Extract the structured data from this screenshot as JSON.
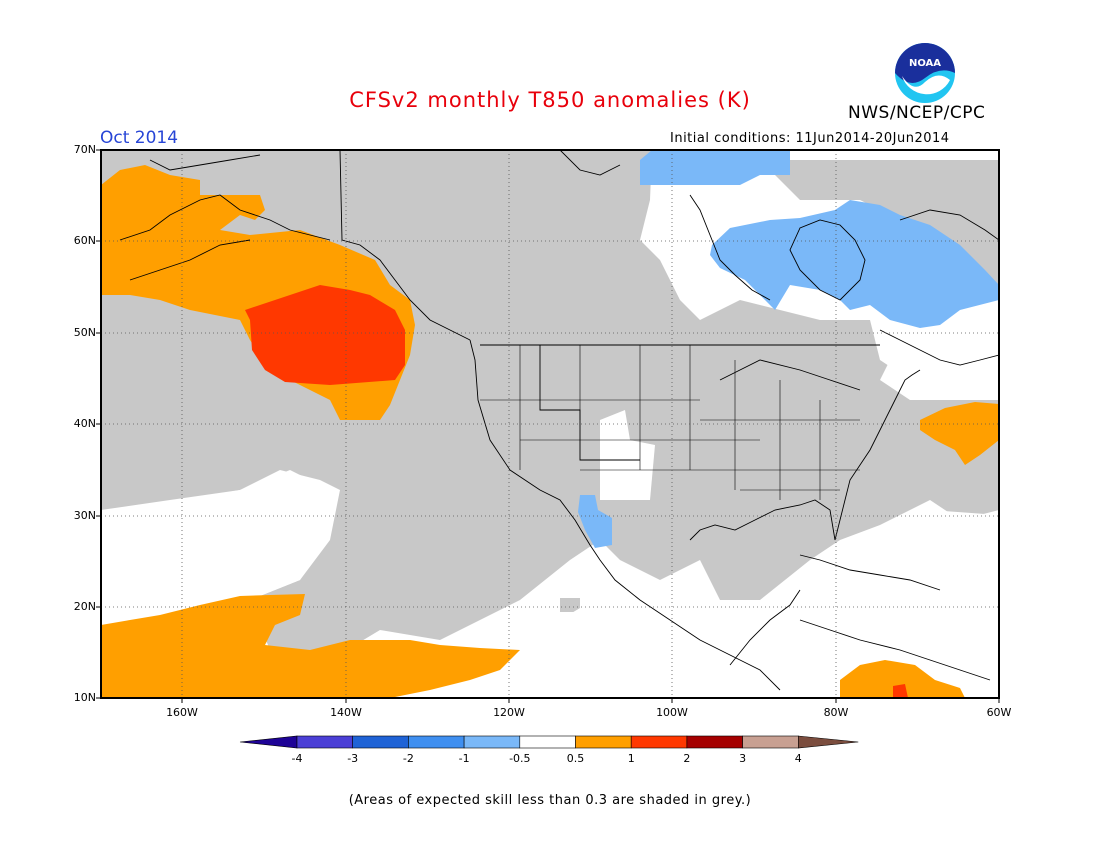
{
  "title": "CFSv2 monthly T850 anomalies (K)",
  "month": "Oct 2014",
  "agency": "NWS/NCEP/CPC",
  "logo_text": "NOAA",
  "initial_conditions": "Initial conditions: 11Jun2014-20Jun2014",
  "note": "(Areas of expected skill less than 0.3 are shaded in grey.)",
  "lat_labels": [
    "70N",
    "60N",
    "50N",
    "40N",
    "30N",
    "20N",
    "10N"
  ],
  "lon_labels": [
    "160W",
    "140W",
    "120W",
    "100W",
    "80W",
    "60W"
  ],
  "colorbar": {
    "labels": [
      "-4",
      "-3",
      "-2",
      "-1",
      "-0.5",
      "0.5",
      "1",
      "2",
      "3",
      "4"
    ],
    "colors": [
      "#1e0396",
      "#4b3fd6",
      "#1f63d6",
      "#3f8ff0",
      "#7ab8f8",
      "#ffffff",
      "#ff9f00",
      "#ff3800",
      "#a50000",
      "#c8a092",
      "#7b4d3e"
    ]
  },
  "colors": {
    "title": "#e8000b",
    "month": "#2745d6",
    "grey_skill": "#c8c8c8",
    "land_line": "#000000"
  },
  "regions": [
    {
      "name": "orange-north-pacific",
      "value": "0.5 to 1"
    },
    {
      "name": "red-gulf-of-alaska",
      "value": "1 to 2"
    },
    {
      "name": "blue-hudson-bay",
      "value": "-1 to -0.5"
    },
    {
      "name": "orange-tropical-pacific",
      "value": "0.5 to 1"
    }
  ]
}
